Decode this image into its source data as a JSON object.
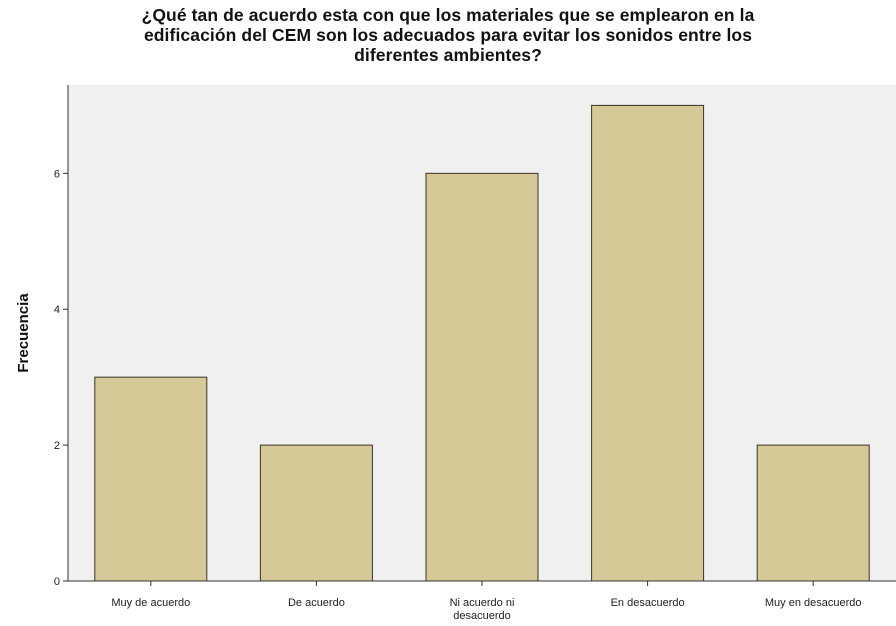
{
  "chart_data": {
    "type": "bar",
    "title": [
      "¿Qué tan de acuerdo esta con que los materiales que se emplearon en la",
      "edificación del CEM son los adecuados para evitar los sonidos entre los",
      "diferentes ambientes?"
    ],
    "xlabel": "",
    "ylabel": "Frecuencia",
    "categories": [
      [
        "Muy de acuerdo"
      ],
      [
        "De acuerdo"
      ],
      [
        "Ni acuerdo ni",
        "desacuerdo"
      ],
      [
        "En desacuerdo"
      ],
      [
        "Muy en desacuerdo"
      ]
    ],
    "values": [
      3,
      2,
      6,
      7,
      2
    ],
    "ylim": [
      0,
      7.3
    ],
    "yticks": [
      0,
      2,
      4,
      6
    ],
    "grid": false,
    "colors": {
      "bar_fill": "#d4c997",
      "bar_stroke": "#3a3324",
      "plot_background": "#f0f0f0"
    }
  }
}
